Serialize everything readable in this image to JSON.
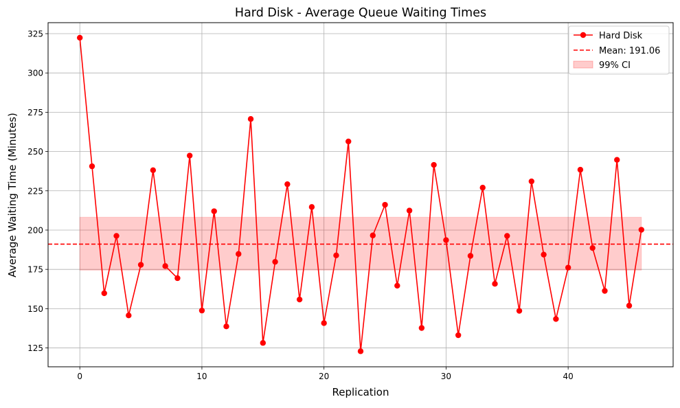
{
  "chart_data": {
    "type": "line",
    "title": "Hard Disk - Average Queue Waiting Times",
    "xlabel": "Replication",
    "ylabel": "Average Waiting Time (Minutes)",
    "xlim": [
      -2.6,
      48.6
    ],
    "ylim": [
      113,
      332
    ],
    "xticks": [
      0,
      10,
      20,
      30,
      40
    ],
    "yticks": [
      125,
      150,
      175,
      200,
      225,
      250,
      275,
      300,
      325
    ],
    "grid": true,
    "legend_position": "top-right",
    "series": [
      {
        "name": "Hard Disk",
        "color": "#ff0000",
        "marker": "circle",
        "x": [
          0,
          1,
          2,
          3,
          4,
          5,
          6,
          7,
          8,
          9,
          10,
          11,
          12,
          13,
          14,
          15,
          16,
          17,
          18,
          19,
          20,
          21,
          22,
          23,
          24,
          25,
          26,
          27,
          28,
          29,
          30,
          31,
          32,
          33,
          34,
          35,
          36,
          37,
          38,
          39,
          40,
          41,
          42,
          43,
          44,
          45,
          46
        ],
        "values": [
          322.4,
          240.6,
          159.8,
          196.3,
          145.7,
          177.9,
          238.1,
          177.1,
          169.4,
          247.4,
          148.8,
          212.0,
          138.7,
          184.8,
          270.7,
          128.2,
          179.8,
          229.2,
          155.8,
          214.7,
          140.8,
          183.9,
          256.4,
          122.9,
          196.6,
          216.1,
          164.6,
          212.4,
          137.7,
          241.5,
          193.6,
          133.1,
          183.6,
          227.0,
          165.8,
          196.3,
          148.6,
          231.0,
          184.4,
          143.4,
          176.1,
          238.4,
          188.6,
          161.3,
          244.7,
          151.9,
          200.2
        ]
      }
    ],
    "mean_line": {
      "label": "Mean: 191.06",
      "value": 191.06,
      "color": "#ff0000",
      "style": "dashed"
    },
    "ci_band": {
      "label": "99% CI",
      "lower": 174.5,
      "upper": 208.2,
      "x_start": 0,
      "x_end": 46,
      "color": "#ff0000",
      "opacity": 0.2
    }
  }
}
